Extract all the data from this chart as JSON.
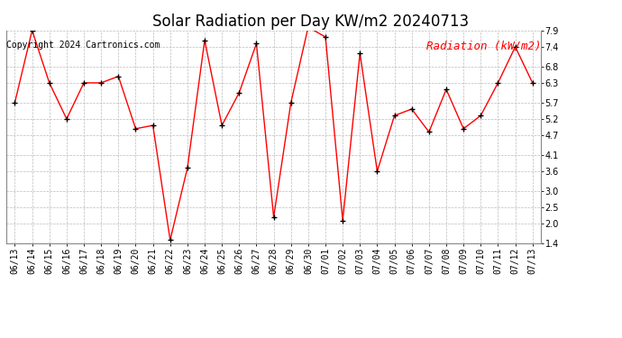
{
  "title": "Solar Radiation per Day KW/m2 20240713",
  "copyright": "Copyright 2024 Cartronics.com",
  "legend_label": "Radiation (kW/m2)",
  "dates": [
    "06/13",
    "06/14",
    "06/15",
    "06/16",
    "06/17",
    "06/18",
    "06/19",
    "06/20",
    "06/21",
    "06/22",
    "06/23",
    "06/24",
    "06/25",
    "06/26",
    "06/27",
    "06/28",
    "06/29",
    "06/30",
    "07/01",
    "07/02",
    "07/03",
    "07/04",
    "07/05",
    "07/06",
    "07/07",
    "07/08",
    "07/09",
    "07/10",
    "07/11",
    "07/12",
    "07/13"
  ],
  "values": [
    5.7,
    7.9,
    6.3,
    5.2,
    6.3,
    6.3,
    6.5,
    4.9,
    5.0,
    1.5,
    3.7,
    7.6,
    5.0,
    6.0,
    7.5,
    2.2,
    5.7,
    8.0,
    7.7,
    2.1,
    7.2,
    3.6,
    5.3,
    5.5,
    4.8,
    6.1,
    4.9,
    5.3,
    6.3,
    7.4,
    6.3
  ],
  "line_color": "red",
  "marker_color": "black",
  "background_color": "white",
  "grid_color": "#bbbbbb",
  "title_color": "black",
  "copyright_color": "black",
  "legend_color": "red",
  "ylim": [
    1.4,
    7.9
  ],
  "yticks": [
    1.4,
    2.0,
    2.5,
    3.0,
    3.6,
    4.1,
    4.7,
    5.2,
    5.7,
    6.3,
    6.8,
    7.4,
    7.9
  ],
  "title_fontsize": 12,
  "copyright_fontsize": 7,
  "legend_fontsize": 9,
  "tick_fontsize": 7,
  "figwidth": 6.9,
  "figheight": 3.75,
  "dpi": 100
}
